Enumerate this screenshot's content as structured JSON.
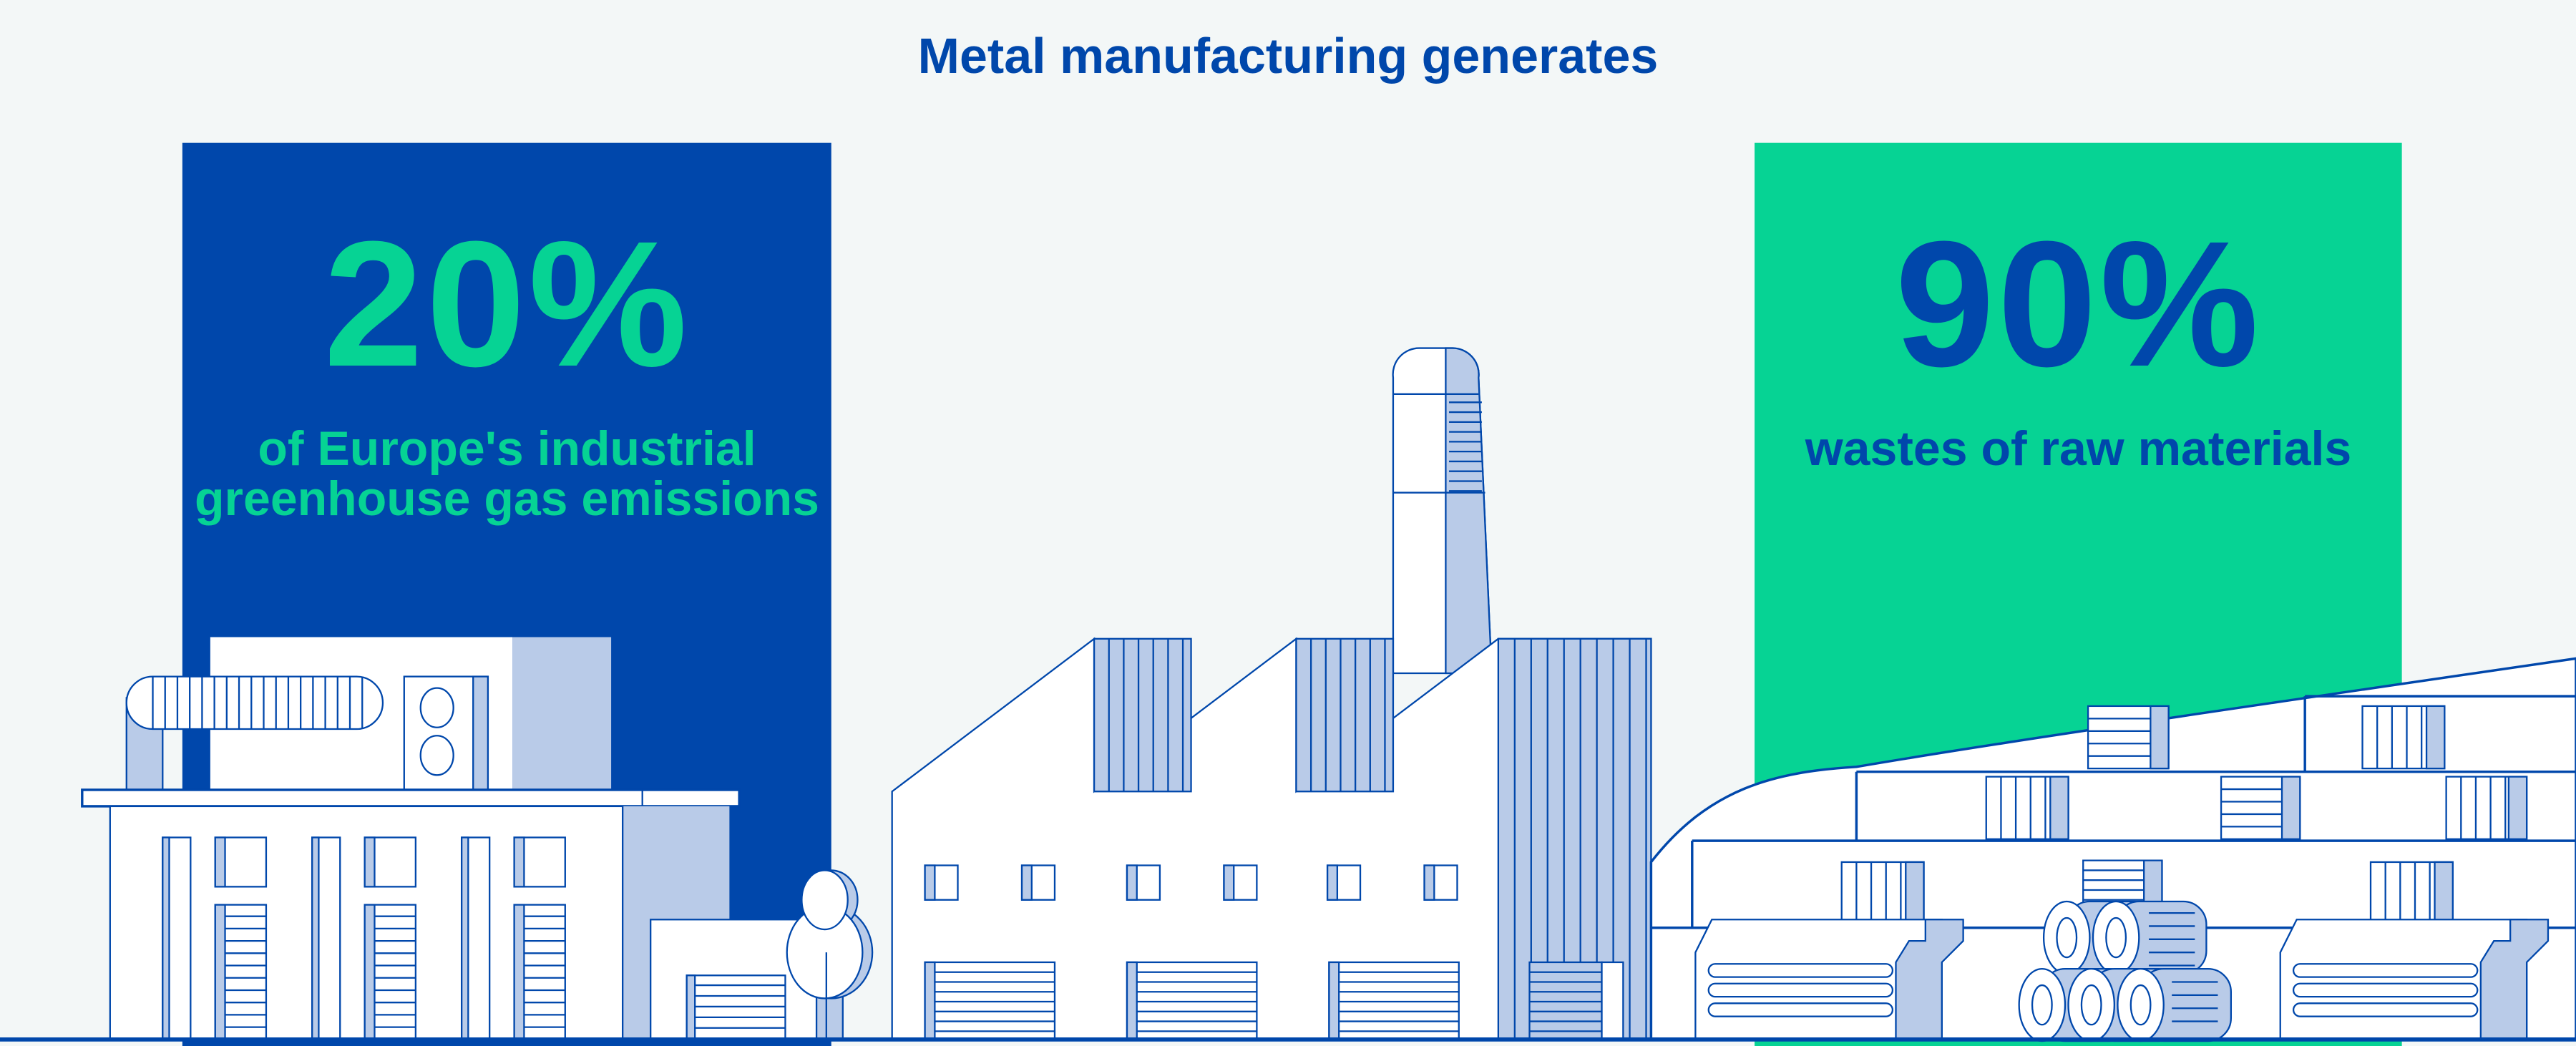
{
  "title": "Metal manufacturing generates",
  "stats": [
    {
      "value": "20%",
      "line1": "of Europe's industrial",
      "line2": "greenhouse gas emissions",
      "box_color": "#0047ab",
      "text_color": "#06d394"
    },
    {
      "value": "90%",
      "line1": "wastes of raw materials",
      "box_color": "#06d394",
      "text_color": "#0047ab"
    }
  ],
  "colors": {
    "background": "#f3f7f7",
    "outline": "#0047ab",
    "shade": "#b9cbe8",
    "fill": "#ffffff"
  }
}
